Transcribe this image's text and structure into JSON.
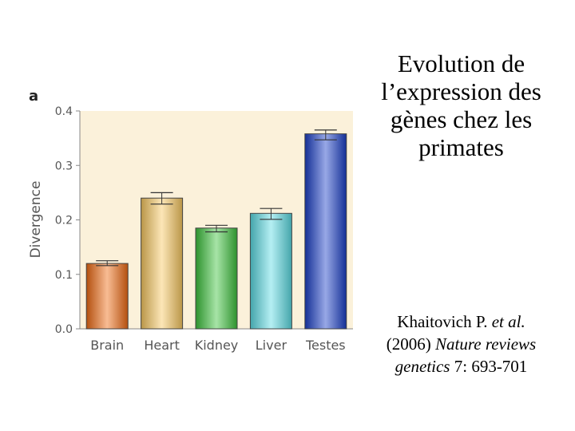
{
  "title": {
    "lines": [
      "Evolution de",
      "l’expression des",
      "gènes chez les",
      "primates"
    ]
  },
  "citation": {
    "line1_main": "Khaitovich P. ",
    "line1_ital": "et al.",
    "line2_main": "(2006) ",
    "line2_ital": "Nature reviews",
    "line3_ital": "genetics ",
    "line3_vol": "7",
    "line3_pages": ": 693-701"
  },
  "chart_data": {
    "type": "bar",
    "panel_label": "a",
    "ylabel": "Divergence",
    "xlabel": "",
    "ylim": [
      0,
      0.4
    ],
    "yticks": [
      "0.0",
      "0.1",
      "0.2",
      "0.3",
      "0.4"
    ],
    "grid": false,
    "categories": [
      "Brain",
      "Heart",
      "Kidney",
      "Liver",
      "Testes"
    ],
    "values": [
      0.12,
      0.24,
      0.185,
      0.212,
      0.358
    ],
    "error_low": [
      0.116,
      0.229,
      0.178,
      0.201,
      0.347
    ],
    "error_high": [
      0.125,
      0.25,
      0.19,
      0.221,
      0.365
    ],
    "colors": {
      "Brain": "#f06a12",
      "Heart": "#f8c860",
      "Kidney": "#3cc23c",
      "Liver": "#5adce4",
      "Testes": "#1a3ec8"
    },
    "background": "#fbf1da"
  }
}
